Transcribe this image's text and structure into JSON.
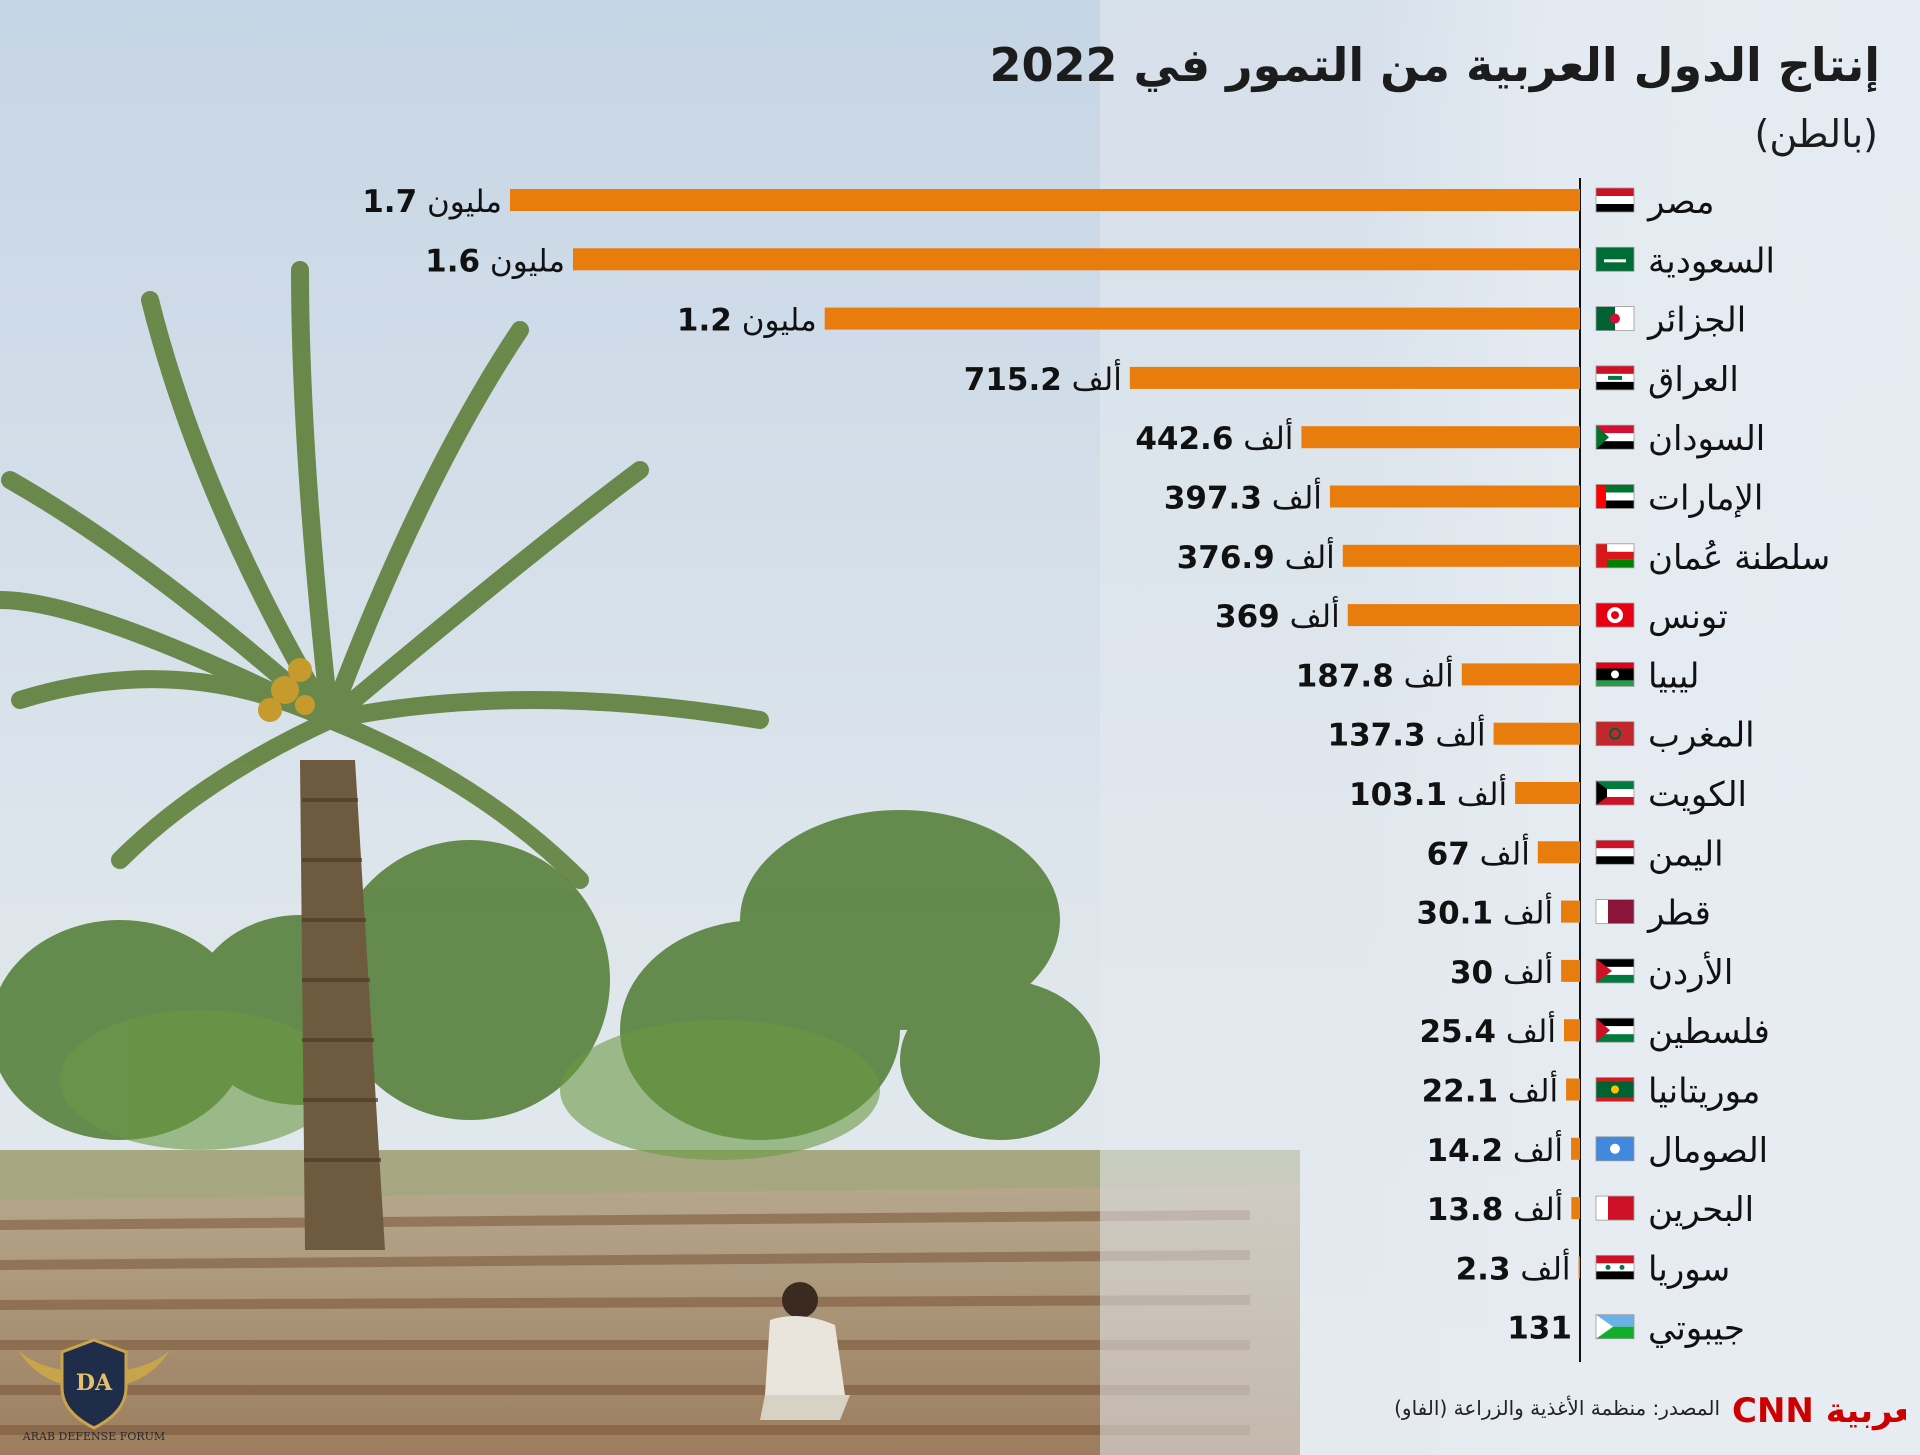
{
  "chart_data": {
    "type": "bar",
    "orientation": "horizontal",
    "title": "إنتاج الدول العربية من التمور في 2022",
    "subtitle": "(بالطن)",
    "categories": [
      "مصر",
      "السعودية",
      "الجزائر",
      "العراق",
      "السودان",
      "الإمارات",
      "سلطنة عُمان",
      "تونس",
      "ليبيا",
      "المغرب",
      "الكويت",
      "اليمن",
      "قطر",
      "الأردن",
      "فلسطين",
      "موريتانيا",
      "الصومال",
      "البحرين",
      "سوريا",
      "جيبوتي"
    ],
    "values": [
      1700000,
      1600000,
      1200000,
      715200,
      442600,
      397300,
      376900,
      369000,
      187800,
      137300,
      103100,
      67000,
      30100,
      30000,
      25400,
      22100,
      14200,
      13800,
      2300,
      131
    ],
    "value_labels": [
      {
        "number": "1.7",
        "unit": "مليون"
      },
      {
        "number": "1.6",
        "unit": "مليون"
      },
      {
        "number": "1.2",
        "unit": "مليون"
      },
      {
        "number": "715.2",
        "unit": "ألف"
      },
      {
        "number": "442.6",
        "unit": "ألف"
      },
      {
        "number": "397.3",
        "unit": "ألف"
      },
      {
        "number": "376.9",
        "unit": "ألف"
      },
      {
        "number": "369",
        "unit": "ألف"
      },
      {
        "number": "187.8",
        "unit": "ألف"
      },
      {
        "number": "137.3",
        "unit": "ألف"
      },
      {
        "number": "103.1",
        "unit": "ألف"
      },
      {
        "number": "67",
        "unit": "ألف"
      },
      {
        "number": "30.1",
        "unit": "ألف"
      },
      {
        "number": "30",
        "unit": "ألف"
      },
      {
        "number": "25.4",
        "unit": "ألف"
      },
      {
        "number": "22.1",
        "unit": "ألف"
      },
      {
        "number": "14.2",
        "unit": "ألف"
      },
      {
        "number": "13.8",
        "unit": "ألف"
      },
      {
        "number": "2.3",
        "unit": "ألف"
      },
      {
        "number": "131",
        "unit": ""
      }
    ],
    "bar_color": "#e87c0c",
    "axis_color": "#111111",
    "grid": false,
    "legend": "none"
  },
  "flags": [
    "egypt",
    "saudi-arabia",
    "algeria",
    "iraq",
    "sudan",
    "uae",
    "oman",
    "tunisia",
    "libya",
    "morocco",
    "kuwait",
    "yemen",
    "qatar",
    "jordan",
    "palestine",
    "mauritania",
    "somalia",
    "bahrain",
    "syria",
    "djibouti"
  ],
  "footer": {
    "source": "المصدر: منظمة الأغذية والزراعة (الفاو)",
    "brand": "CNN العربية"
  },
  "watermark": {
    "text": "ARAB DEFENSE FORUM",
    "initials": "DA"
  }
}
